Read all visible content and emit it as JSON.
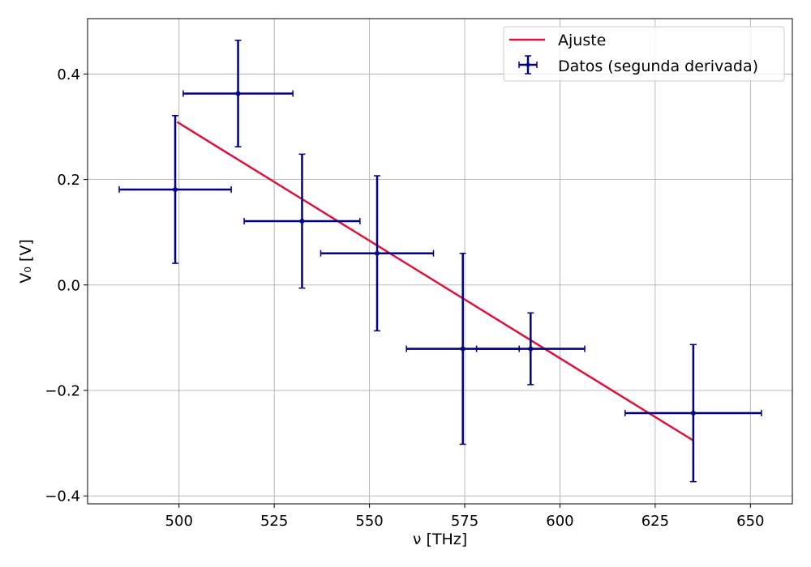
{
  "chart_data": {
    "type": "scatter",
    "xlabel": "ν [THz]",
    "ylabel": "V₀ [V]",
    "xlim": [
      476,
      661
    ],
    "ylim": [
      -0.415,
      0.505
    ],
    "xticks": [
      500,
      525,
      550,
      575,
      600,
      625,
      650
    ],
    "xtick_labels": [
      "500",
      "525",
      "550",
      "575",
      "600",
      "625",
      "650"
    ],
    "yticks": [
      -0.4,
      -0.2,
      0.0,
      0.2,
      0.4
    ],
    "ytick_labels": [
      "−0.4",
      "−0.2",
      "0.0",
      "0.2",
      "0.4"
    ],
    "grid": true,
    "legend_position": "top-right",
    "series": [
      {
        "name": "Ajuste",
        "kind": "line",
        "color": "#dc143c",
        "points": [
          [
            499.5,
            0.309
          ],
          [
            635,
            -0.295
          ]
        ]
      },
      {
        "name": "Datos (segunda derivada)",
        "kind": "errorbar",
        "color": "#000080",
        "points": [
          {
            "x": 499.0,
            "y": 0.181,
            "xerr": 14.7,
            "yerr": 0.14
          },
          {
            "x": 515.5,
            "y": 0.363,
            "xerr": 14.4,
            "yerr": 0.101
          },
          {
            "x": 532.3,
            "y": 0.121,
            "xerr": 15.2,
            "yerr": 0.127
          },
          {
            "x": 552.0,
            "y": 0.06,
            "xerr": 14.8,
            "yerr": 0.147
          },
          {
            "x": 574.5,
            "y": -0.121,
            "xerr": 14.8,
            "yerr": 0.181
          },
          {
            "x": 592.3,
            "y": -0.121,
            "xerr": 14.2,
            "yerr": 0.068
          },
          {
            "x": 635.0,
            "y": -0.243,
            "xerr": 17.9,
            "yerr": 0.13
          }
        ]
      }
    ]
  }
}
